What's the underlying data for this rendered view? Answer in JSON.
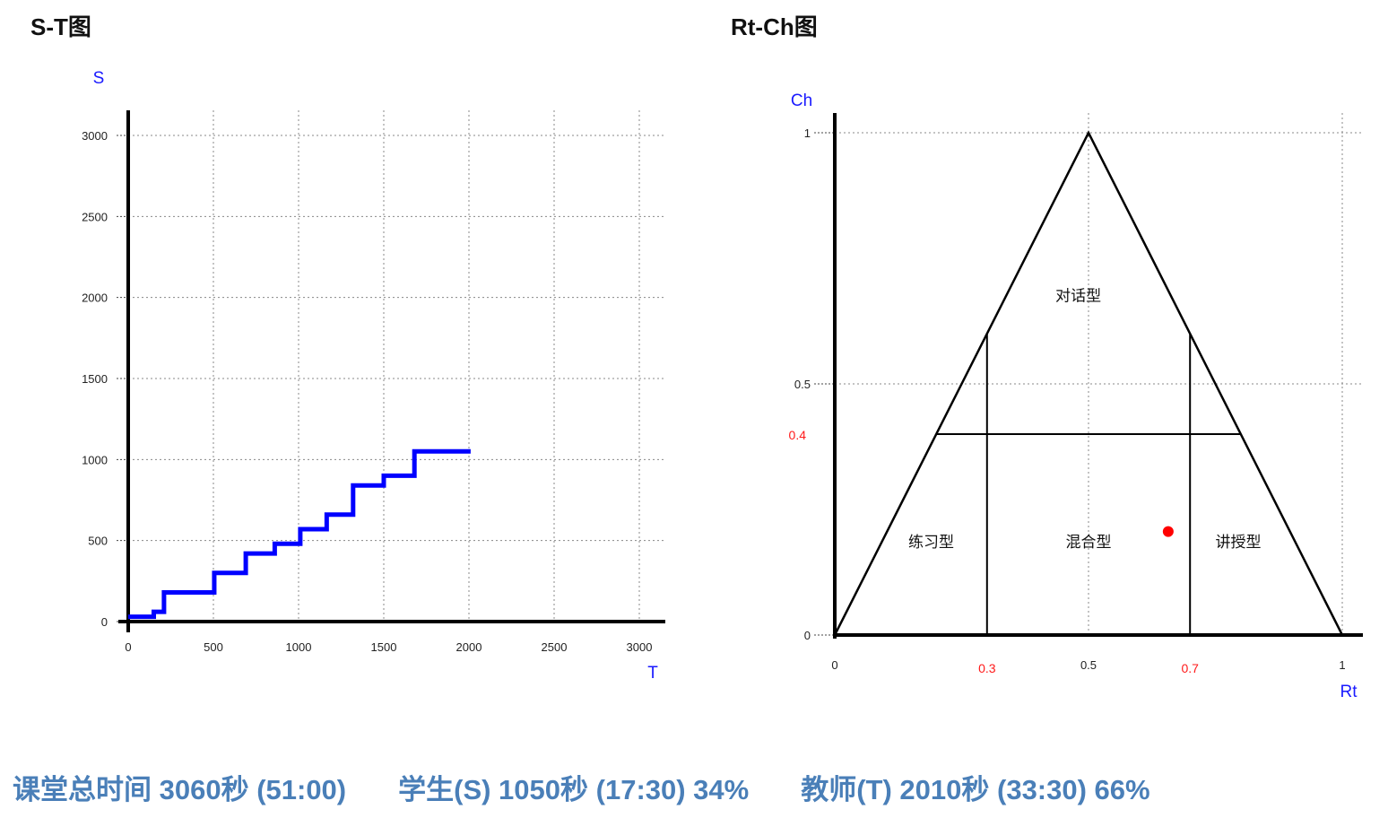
{
  "titles": {
    "st": "S-T图",
    "rtch": "Rt-Ch图"
  },
  "chart_data": [
    {
      "type": "line",
      "title": "S-T图",
      "xlabel": "T",
      "ylabel": "S",
      "xlim": [
        0,
        3000
      ],
      "ylim": [
        0,
        3000
      ],
      "xticks": [
        "0",
        "500",
        "1000",
        "1500",
        "2000",
        "2500",
        "3000"
      ],
      "yticks": [
        "0",
        "500",
        "1000",
        "1500",
        "2000",
        "2500",
        "3000"
      ],
      "grid": true,
      "series": [
        {
          "color": "#0000ff",
          "step": true,
          "points": [
            [
              0,
              30
            ],
            [
              150,
              30
            ],
            [
              150,
              60
            ],
            [
              210,
              60
            ],
            [
              210,
              180
            ],
            [
              505,
              180
            ],
            [
              505,
              300
            ],
            [
              690,
              300
            ],
            [
              690,
              420
            ],
            [
              860,
              420
            ],
            [
              860,
              480
            ],
            [
              1010,
              480
            ],
            [
              1010,
              570
            ],
            [
              1165,
              570
            ],
            [
              1165,
              660
            ],
            [
              1320,
              660
            ],
            [
              1320,
              840
            ],
            [
              1500,
              840
            ],
            [
              1500,
              900
            ],
            [
              1680,
              900
            ],
            [
              1680,
              1050
            ],
            [
              2010,
              1050
            ]
          ]
        }
      ]
    },
    {
      "type": "scatter",
      "title": "Rt-Ch图",
      "xlabel": "Rt",
      "ylabel": "Ch",
      "xlim": [
        0,
        1
      ],
      "ylim": [
        0,
        1
      ],
      "xticks": [
        "0",
        "0.5",
        "1"
      ],
      "yticks": [
        "0",
        "0.5",
        "1"
      ],
      "xticks_red": [
        "0.3",
        "0.7"
      ],
      "yticks_red": [
        "0.4"
      ],
      "grid": true,
      "regions": [
        "对话型",
        "练习型",
        "混合型",
        "讲授型"
      ],
      "points": [
        {
          "x": 0.657,
          "y": 0.206,
          "color": "#ff0000"
        }
      ]
    }
  ],
  "summary": {
    "total": "课堂总时间 3060秒 (51:00)",
    "student": "学生(S) 1050秒 (17:30) 34%",
    "teacher": "教师(T) 2010秒 (33:30) 66%"
  }
}
